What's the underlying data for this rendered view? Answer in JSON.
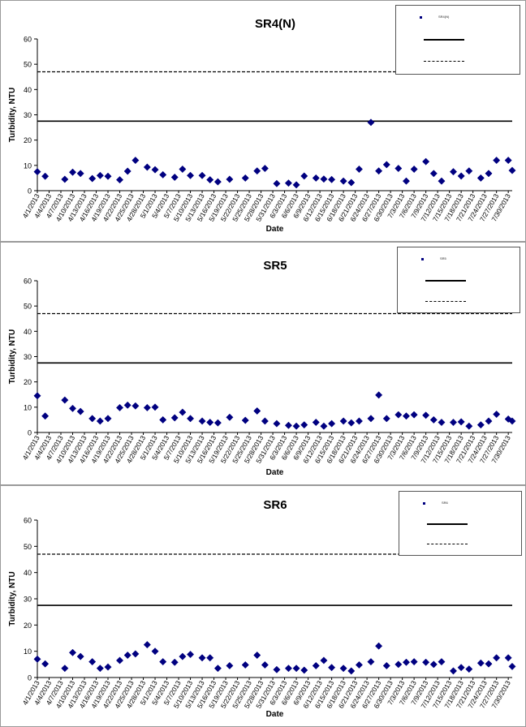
{
  "dates": [
    "4/1/2013",
    "4/4/2013",
    "4/7/2013",
    "4/10/2013",
    "4/13/2013",
    "4/16/2013",
    "4/19/2013",
    "4/22/2013",
    "4/25/2013",
    "4/28/2013",
    "5/1/2013",
    "5/4/2013",
    "5/7/2013",
    "5/10/2013",
    "5/13/2013",
    "5/16/2013",
    "5/19/2013",
    "5/22/2013",
    "5/25/2013",
    "5/28/2013",
    "5/31/2013",
    "6/3/2013",
    "6/6/2013",
    "6/9/2013",
    "6/12/2013",
    "6/15/2013",
    "6/18/2013",
    "6/21/2013",
    "6/24/2013",
    "6/27/2013",
    "6/30/2013",
    "7/3/2013",
    "7/6/2013",
    "7/9/2013",
    "7/12/2013",
    "7/15/2013",
    "7/18/2013",
    "7/21/2013",
    "7/24/2013",
    "7/27/2013",
    "7/30/2013"
  ],
  "chart_data": [
    {
      "type": "scatter",
      "title": "SR4(N)",
      "xlabel": "Date",
      "ylabel": "Turbidity, NTU",
      "ylim": [
        0,
        60
      ],
      "yticks": [
        0,
        10,
        20,
        30,
        40,
        50,
        60
      ],
      "x_range": [
        "4/1/2013",
        "7/31/2013"
      ],
      "grid": false,
      "legend_position": "top-right",
      "legend_entries": [
        "SR4(N)",
        "",
        ""
      ],
      "thresholds": [
        {
          "value": 27.5,
          "style": "solid"
        },
        {
          "value": 47,
          "style": "dashed"
        }
      ],
      "series": [
        {
          "name": "SR4(N)",
          "points": [
            {
              "x": "4/1/2013",
              "y": 7.5
            },
            {
              "x": "4/3/2013",
              "y": 5.7
            },
            {
              "x": "4/8/2013",
              "y": 4.5
            },
            {
              "x": "4/10/2013",
              "y": 7.3
            },
            {
              "x": "4/12/2013",
              "y": 6.8
            },
            {
              "x": "4/15/2013",
              "y": 4.8
            },
            {
              "x": "4/17/2013",
              "y": 6
            },
            {
              "x": "4/19/2013",
              "y": 5.7
            },
            {
              "x": "4/22/2013",
              "y": 4.3
            },
            {
              "x": "4/24/2013",
              "y": 7.7
            },
            {
              "x": "4/26/2013",
              "y": 12
            },
            {
              "x": "4/29/2013",
              "y": 9.3
            },
            {
              "x": "5/1/2013",
              "y": 8.3
            },
            {
              "x": "5/3/2013",
              "y": 6.3
            },
            {
              "x": "5/6/2013",
              "y": 5.3
            },
            {
              "x": "5/8/2013",
              "y": 8.5
            },
            {
              "x": "5/10/2013",
              "y": 6
            },
            {
              "x": "5/13/2013",
              "y": 6
            },
            {
              "x": "5/15/2013",
              "y": 4.3
            },
            {
              "x": "5/17/2013",
              "y": 3.5
            },
            {
              "x": "5/20/2013",
              "y": 4.5
            },
            {
              "x": "5/24/2013",
              "y": 5
            },
            {
              "x": "5/27/2013",
              "y": 7.8
            },
            {
              "x": "5/29/2013",
              "y": 8.8
            },
            {
              "x": "6/1/2013",
              "y": 2.8
            },
            {
              "x": "6/4/2013",
              "y": 3
            },
            {
              "x": "6/6/2013",
              "y": 2.3
            },
            {
              "x": "6/8/2013",
              "y": 5.8
            },
            {
              "x": "6/11/2013",
              "y": 5
            },
            {
              "x": "6/13/2013",
              "y": 4.6
            },
            {
              "x": "6/15/2013",
              "y": 4.4
            },
            {
              "x": "6/18/2013",
              "y": 3.8
            },
            {
              "x": "6/20/2013",
              "y": 3.2
            },
            {
              "x": "6/22/2013",
              "y": 8.5
            },
            {
              "x": "6/25/2013",
              "y": 27
            },
            {
              "x": "6/27/2013",
              "y": 7.8
            },
            {
              "x": "6/29/2013",
              "y": 10.3
            },
            {
              "x": "7/2/2013",
              "y": 8.8
            },
            {
              "x": "7/4/2013",
              "y": 3.8
            },
            {
              "x": "7/6/2013",
              "y": 8.5
            },
            {
              "x": "7/9/2013",
              "y": 11.5
            },
            {
              "x": "7/11/2013",
              "y": 6.8
            },
            {
              "x": "7/13/2013",
              "y": 3.8
            },
            {
              "x": "7/16/2013",
              "y": 7.5
            },
            {
              "x": "7/18/2013",
              "y": 5.8
            },
            {
              "x": "7/20/2013",
              "y": 7.8
            },
            {
              "x": "7/23/2013",
              "y": 5
            },
            {
              "x": "7/25/2013",
              "y": 6.8
            },
            {
              "x": "7/27/2013",
              "y": 12
            },
            {
              "x": "7/30/2013",
              "y": 12
            },
            {
              "x": "7/31/2013",
              "y": 8
            }
          ]
        }
      ]
    },
    {
      "type": "scatter",
      "title": "SR5",
      "xlabel": "Date",
      "ylabel": "Turbidity, NTU",
      "ylim": [
        0,
        60
      ],
      "yticks": [
        0,
        10,
        20,
        30,
        40,
        50,
        60
      ],
      "x_range": [
        "4/1/2013",
        "7/31/2013"
      ],
      "grid": false,
      "legend_position": "top-right",
      "legend_entries": [
        "SR5",
        "",
        ""
      ],
      "thresholds": [
        {
          "value": 27.5,
          "style": "solid"
        },
        {
          "value": 47,
          "style": "dashed"
        }
      ],
      "series": [
        {
          "name": "SR5",
          "points": [
            {
              "x": "4/1/2013",
              "y": 14.5
            },
            {
              "x": "4/3/2013",
              "y": 6.5
            },
            {
              "x": "4/8/2013",
              "y": 12.8
            },
            {
              "x": "4/10/2013",
              "y": 9.5
            },
            {
              "x": "4/12/2013",
              "y": 8.3
            },
            {
              "x": "4/15/2013",
              "y": 5.5
            },
            {
              "x": "4/17/2013",
              "y": 4.5
            },
            {
              "x": "4/19/2013",
              "y": 5.5
            },
            {
              "x": "4/22/2013",
              "y": 9.8
            },
            {
              "x": "4/24/2013",
              "y": 10.8
            },
            {
              "x": "4/26/2013",
              "y": 10.5
            },
            {
              "x": "4/29/2013",
              "y": 9.8
            },
            {
              "x": "5/1/2013",
              "y": 10
            },
            {
              "x": "5/3/2013",
              "y": 5
            },
            {
              "x": "5/6/2013",
              "y": 5.8
            },
            {
              "x": "5/8/2013",
              "y": 8
            },
            {
              "x": "5/10/2013",
              "y": 5.5
            },
            {
              "x": "5/13/2013",
              "y": 4.5
            },
            {
              "x": "5/15/2013",
              "y": 4
            },
            {
              "x": "5/17/2013",
              "y": 3.8
            },
            {
              "x": "5/20/2013",
              "y": 6
            },
            {
              "x": "5/24/2013",
              "y": 4.8
            },
            {
              "x": "5/27/2013",
              "y": 8.5
            },
            {
              "x": "5/29/2013",
              "y": 4.5
            },
            {
              "x": "6/1/2013",
              "y": 3.5
            },
            {
              "x": "6/4/2013",
              "y": 2.8
            },
            {
              "x": "6/6/2013",
              "y": 2.5
            },
            {
              "x": "6/8/2013",
              "y": 3
            },
            {
              "x": "6/11/2013",
              "y": 4
            },
            {
              "x": "6/13/2013",
              "y": 2.5
            },
            {
              "x": "6/15/2013",
              "y": 3.5
            },
            {
              "x": "6/18/2013",
              "y": 4.5
            },
            {
              "x": "6/20/2013",
              "y": 3.8
            },
            {
              "x": "6/22/2013",
              "y": 4.5
            },
            {
              "x": "6/25/2013",
              "y": 5.5
            },
            {
              "x": "6/27/2013",
              "y": 14.8
            },
            {
              "x": "6/29/2013",
              "y": 5.5
            },
            {
              "x": "7/2/2013",
              "y": 7
            },
            {
              "x": "7/4/2013",
              "y": 6.5
            },
            {
              "x": "7/6/2013",
              "y": 7
            },
            {
              "x": "7/9/2013",
              "y": 6.8
            },
            {
              "x": "7/11/2013",
              "y": 5
            },
            {
              "x": "7/13/2013",
              "y": 4
            },
            {
              "x": "7/16/2013",
              "y": 4
            },
            {
              "x": "7/18/2013",
              "y": 4.2
            },
            {
              "x": "7/20/2013",
              "y": 2.5
            },
            {
              "x": "7/23/2013",
              "y": 3
            },
            {
              "x": "7/25/2013",
              "y": 4.5
            },
            {
              "x": "7/27/2013",
              "y": 7.2
            },
            {
              "x": "7/30/2013",
              "y": 5.3
            },
            {
              "x": "7/31/2013",
              "y": 4.5
            }
          ]
        }
      ]
    },
    {
      "type": "scatter",
      "title": "SR6",
      "xlabel": "Date",
      "ylabel": "Turbidity, NTU",
      "ylim": [
        0,
        60
      ],
      "yticks": [
        0,
        10,
        20,
        30,
        40,
        50,
        60
      ],
      "x_range": [
        "4/1/2013",
        "7/31/2013"
      ],
      "grid": false,
      "legend_position": "top-right",
      "legend_entries": [
        "SR6",
        "",
        ""
      ],
      "thresholds": [
        {
          "value": 27.5,
          "style": "solid"
        },
        {
          "value": 47,
          "style": "dashed"
        }
      ],
      "series": [
        {
          "name": "SR6",
          "points": [
            {
              "x": "4/1/2013",
              "y": 7
            },
            {
              "x": "4/3/2013",
              "y": 5.2
            },
            {
              "x": "4/8/2013",
              "y": 3.5
            },
            {
              "x": "4/10/2013",
              "y": 9.5
            },
            {
              "x": "4/12/2013",
              "y": 8
            },
            {
              "x": "4/15/2013",
              "y": 6
            },
            {
              "x": "4/17/2013",
              "y": 3.5
            },
            {
              "x": "4/19/2013",
              "y": 4
            },
            {
              "x": "4/22/2013",
              "y": 6.5
            },
            {
              "x": "4/24/2013",
              "y": 8.5
            },
            {
              "x": "4/26/2013",
              "y": 9
            },
            {
              "x": "4/29/2013",
              "y": 12.5
            },
            {
              "x": "5/1/2013",
              "y": 10
            },
            {
              "x": "5/3/2013",
              "y": 6
            },
            {
              "x": "5/6/2013",
              "y": 5.8
            },
            {
              "x": "5/8/2013",
              "y": 8
            },
            {
              "x": "5/10/2013",
              "y": 8.8
            },
            {
              "x": "5/13/2013",
              "y": 7.5
            },
            {
              "x": "5/15/2013",
              "y": 7.5
            },
            {
              "x": "5/17/2013",
              "y": 3.5
            },
            {
              "x": "5/20/2013",
              "y": 4.5
            },
            {
              "x": "5/24/2013",
              "y": 4.8
            },
            {
              "x": "5/27/2013",
              "y": 8.5
            },
            {
              "x": "5/29/2013",
              "y": 4.8
            },
            {
              "x": "6/1/2013",
              "y": 3
            },
            {
              "x": "6/4/2013",
              "y": 3.5
            },
            {
              "x": "6/6/2013",
              "y": 3.5
            },
            {
              "x": "6/8/2013",
              "y": 2.8
            },
            {
              "x": "6/11/2013",
              "y": 4.5
            },
            {
              "x": "6/13/2013",
              "y": 6.5
            },
            {
              "x": "6/15/2013",
              "y": 3.8
            },
            {
              "x": "6/18/2013",
              "y": 3.5
            },
            {
              "x": "6/20/2013",
              "y": 2.5
            },
            {
              "x": "6/22/2013",
              "y": 4.8
            },
            {
              "x": "6/25/2013",
              "y": 6
            },
            {
              "x": "6/27/2013",
              "y": 12
            },
            {
              "x": "6/29/2013",
              "y": 4.5
            },
            {
              "x": "7/2/2013",
              "y": 5
            },
            {
              "x": "7/4/2013",
              "y": 5.8
            },
            {
              "x": "7/6/2013",
              "y": 6
            },
            {
              "x": "7/9/2013",
              "y": 5.8
            },
            {
              "x": "7/11/2013",
              "y": 5
            },
            {
              "x": "7/13/2013",
              "y": 6
            },
            {
              "x": "7/16/2013",
              "y": 2.5
            },
            {
              "x": "7/18/2013",
              "y": 3.8
            },
            {
              "x": "7/20/2013",
              "y": 3.2
            },
            {
              "x": "7/23/2013",
              "y": 5.5
            },
            {
              "x": "7/25/2013",
              "y": 5.2
            },
            {
              "x": "7/27/2013",
              "y": 7.5
            },
            {
              "x": "7/30/2013",
              "y": 7.5
            },
            {
              "x": "7/31/2013",
              "y": 4.2
            }
          ]
        }
      ]
    }
  ],
  "colors": {
    "marker": "#000080",
    "threshold_line": "#000000",
    "axis": "#000000",
    "panel_border": "#9a9a9a"
  }
}
